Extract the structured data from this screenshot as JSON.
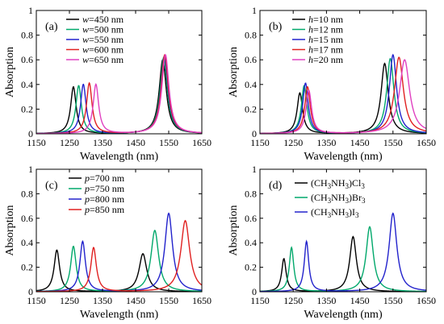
{
  "chart_data": [
    {
      "type": "line",
      "panel_label": "(a)",
      "xlabel": "Wavelength (nm)",
      "ylabel": "Absorption",
      "xlim": [
        1150,
        1650
      ],
      "ylim": [
        0,
        1
      ],
      "xticks": [
        1150,
        1250,
        1350,
        1450,
        1550,
        1650
      ],
      "yticks": [
        0,
        0.2,
        0.4,
        0.6,
        0.8,
        1
      ],
      "ytick_labels": [
        "0",
        "0.2",
        "0.4",
        "0.6",
        "0.8",
        "1"
      ],
      "legend_position": "top-center",
      "series": [
        {
          "name": "w=450 nm",
          "legend_var": "w",
          "legend_rest": "=450 nm",
          "color": "#000000",
          "peaks": [
            [
              1262,
              0.38,
              10
            ],
            [
              1532,
              0.6,
              13
            ]
          ]
        },
        {
          "name": "w=500 nm",
          "legend_var": "w",
          "legend_rest": "=500 nm",
          "color": "#00a86b",
          "peaks": [
            [
              1278,
              0.39,
              10
            ],
            [
              1535,
              0.62,
              13
            ]
          ]
        },
        {
          "name": "w=550 nm",
          "legend_var": "w",
          "legend_rest": "=550 nm",
          "color": "#2222cc",
          "peaks": [
            [
              1292,
              0.4,
              10
            ],
            [
              1537,
              0.63,
              13
            ]
          ]
        },
        {
          "name": "w=600 nm",
          "legend_var": "w",
          "legend_rest": "=600 nm",
          "color": "#e02020",
          "peaks": [
            [
              1310,
              0.41,
              10
            ],
            [
              1538,
              0.64,
              13
            ]
          ]
        },
        {
          "name": "w=650 nm",
          "legend_var": "w",
          "legend_rest": "=650 nm",
          "color": "#e040c0",
          "peaks": [
            [
              1330,
              0.4,
              10
            ],
            [
              1540,
              0.64,
              13
            ]
          ]
        }
      ]
    },
    {
      "type": "line",
      "panel_label": "(b)",
      "xlabel": "Wavelength (nm)",
      "ylabel": "Absorption",
      "xlim": [
        1150,
        1650
      ],
      "ylim": [
        0,
        1
      ],
      "xticks": [
        1150,
        1250,
        1350,
        1450,
        1550,
        1650
      ],
      "yticks": [
        0,
        0.2,
        0.4,
        0.6,
        0.8,
        1
      ],
      "ytick_labels": [
        "0",
        "0.2",
        "0.4",
        "0.6",
        "0.8",
        "1"
      ],
      "legend_position": "top-center",
      "series": [
        {
          "name": "h=10 nm",
          "legend_var": "h",
          "legend_rest": "=10 nm",
          "color": "#000000",
          "peaks": [
            [
              1270,
              0.33,
              10
            ],
            [
              1525,
              0.57,
              13
            ]
          ]
        },
        {
          "name": "h=12 nm",
          "legend_var": "h",
          "legend_rest": "=12 nm",
          "color": "#00a86b",
          "peaks": [
            [
              1283,
              0.39,
              10
            ],
            [
              1542,
              0.61,
              13
            ]
          ]
        },
        {
          "name": "h=15 nm",
          "legend_var": "h",
          "legend_rest": "=15 nm",
          "color": "#2222cc",
          "peaks": [
            [
              1287,
              0.41,
              10
            ],
            [
              1550,
              0.64,
              13
            ]
          ]
        },
        {
          "name": "h=17 nm",
          "legend_var": "h",
          "legend_rest": "=17 nm",
          "color": "#e02020",
          "peaks": [
            [
              1293,
              0.38,
              10
            ],
            [
              1568,
              0.62,
              16
            ]
          ]
        },
        {
          "name": "h=20 nm",
          "legend_var": "h",
          "legend_rest": "=20 nm",
          "color": "#e040c0",
          "peaks": [
            [
              1297,
              0.35,
              10
            ],
            [
              1585,
              0.6,
              18
            ]
          ]
        }
      ]
    },
    {
      "type": "line",
      "panel_label": "(c)",
      "xlabel": "Wavelength (nm)",
      "ylabel": "Absorption",
      "xlim": [
        1150,
        1650
      ],
      "ylim": [
        0,
        1
      ],
      "xticks": [
        1150,
        1250,
        1350,
        1450,
        1550,
        1650
      ],
      "yticks": [
        0,
        0.2,
        0.4,
        0.6,
        0.8,
        1
      ],
      "ytick_labels": [
        "0",
        "0.2",
        "0.4",
        "0.6",
        "0.8",
        "1"
      ],
      "legend_position": "top-center",
      "series": [
        {
          "name": "p=700 nm",
          "legend_var": "p",
          "legend_rest": "=700 nm",
          "color": "#000000",
          "peaks": [
            [
              1212,
              0.34,
              10
            ],
            [
              1472,
              0.31,
              14
            ]
          ]
        },
        {
          "name": "p=750 nm",
          "legend_var": "p",
          "legend_rest": "=750 nm",
          "color": "#00a86b",
          "peaks": [
            [
              1262,
              0.37,
              10
            ],
            [
              1508,
              0.5,
              14
            ]
          ]
        },
        {
          "name": "p=800 nm",
          "legend_var": "p",
          "legend_rest": "=800 nm",
          "color": "#2222cc",
          "peaks": [
            [
              1290,
              0.41,
              10
            ],
            [
              1550,
              0.64,
              14
            ]
          ]
        },
        {
          "name": "p=850 nm",
          "legend_var": "p",
          "legend_rest": "=850 nm",
          "color": "#e02020",
          "peaks": [
            [
              1323,
              0.36,
              10
            ],
            [
              1600,
              0.58,
              16
            ]
          ]
        }
      ]
    },
    {
      "type": "line",
      "panel_label": "(d)",
      "xlabel": "Wavelength (nm)",
      "ylabel": "Absorption",
      "xlim": [
        1150,
        1650
      ],
      "ylim": [
        0,
        1
      ],
      "xticks": [
        1150,
        1250,
        1350,
        1450,
        1550,
        1650
      ],
      "yticks": [
        0,
        0.2,
        0.4,
        0.6,
        0.8,
        1
      ],
      "ytick_labels": [
        "0",
        "0.2",
        "0.4",
        "0.6",
        "0.8",
        "1"
      ],
      "legend_position": "top-center",
      "series": [
        {
          "name": "(CH3NH3)Cl3",
          "legend_parts": [
            "(CH",
            "3",
            "NH",
            "3",
            ")Cl",
            "3"
          ],
          "color": "#000000",
          "peaks": [
            [
              1222,
              0.27,
              8
            ],
            [
              1430,
              0.45,
              12
            ]
          ]
        },
        {
          "name": "(CH3NH3)Br3",
          "legend_parts": [
            "(CH",
            "3",
            "NH",
            "3",
            ")Br",
            "3"
          ],
          "color": "#00a86b",
          "peaks": [
            [
              1245,
              0.36,
              8
            ],
            [
              1480,
              0.53,
              13
            ]
          ]
        },
        {
          "name": "(CH3NH3)I3",
          "legend_parts": [
            "(CH",
            "3",
            "NH",
            "3",
            ")I",
            "3"
          ],
          "color": "#2222cc",
          "peaks": [
            [
              1290,
              0.41,
              8
            ],
            [
              1550,
              0.64,
              14
            ]
          ]
        }
      ]
    }
  ]
}
